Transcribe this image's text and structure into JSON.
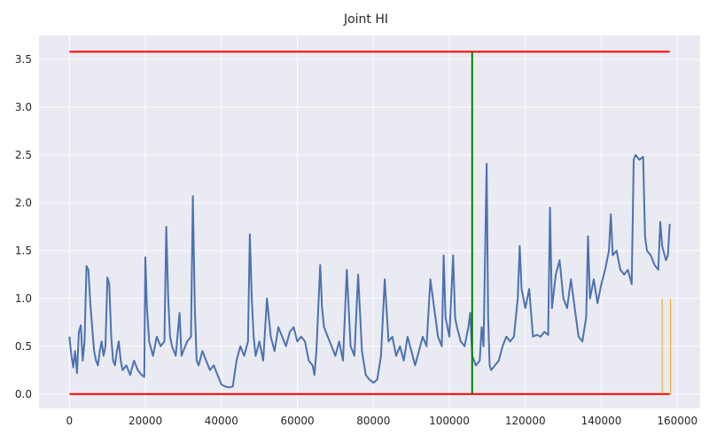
{
  "chart_data": {
    "type": "line",
    "title": "Joint HI",
    "xlabel": "",
    "ylabel": "",
    "xlim": [
      -8000,
      166000
    ],
    "ylim": [
      -0.15,
      3.75
    ],
    "xticks": [
      0,
      20000,
      40000,
      60000,
      80000,
      100000,
      120000,
      140000,
      160000
    ],
    "yticks": [
      0.0,
      0.5,
      1.0,
      1.5,
      2.0,
      2.5,
      3.0,
      3.5
    ],
    "xtick_labels": [
      "0",
      "20000",
      "40000",
      "60000",
      "80000",
      "100000",
      "120000",
      "140000",
      "160000"
    ],
    "ytick_labels": [
      "0.0",
      "0.5",
      "1.0",
      "1.5",
      "2.0",
      "2.5",
      "3.0",
      "3.5"
    ],
    "grid": true,
    "colors": {
      "background": "#eaeaf2",
      "grid": "#ffffff",
      "series": "#4c72b0",
      "threshold": "#ff0000",
      "marker": "#008000",
      "window": "#f5a623",
      "text": "#262626"
    },
    "series": [
      {
        "color": "#4c72b0",
        "points": [
          [
            0,
            0.6
          ],
          [
            500,
            0.42
          ],
          [
            1000,
            0.28
          ],
          [
            1500,
            0.45
          ],
          [
            2000,
            0.22
          ],
          [
            2500,
            0.65
          ],
          [
            3000,
            0.72
          ],
          [
            3500,
            0.35
          ],
          [
            4000,
            0.55
          ],
          [
            4500,
            1.34
          ],
          [
            5000,
            1.3
          ],
          [
            5500,
            0.95
          ],
          [
            6000,
            0.7
          ],
          [
            6500,
            0.45
          ],
          [
            7000,
            0.35
          ],
          [
            7500,
            0.3
          ],
          [
            8000,
            0.45
          ],
          [
            8500,
            0.55
          ],
          [
            9000,
            0.4
          ],
          [
            9500,
            0.5
          ],
          [
            10000,
            1.22
          ],
          [
            10500,
            1.15
          ],
          [
            11000,
            0.6
          ],
          [
            11500,
            0.35
          ],
          [
            12000,
            0.3
          ],
          [
            12500,
            0.45
          ],
          [
            13000,
            0.55
          ],
          [
            13500,
            0.35
          ],
          [
            14000,
            0.25
          ],
          [
            15000,
            0.3
          ],
          [
            16000,
            0.2
          ],
          [
            17000,
            0.35
          ],
          [
            18000,
            0.25
          ],
          [
            19000,
            0.2
          ],
          [
            19700,
            0.18
          ],
          [
            20000,
            1.43
          ],
          [
            20400,
            0.9
          ],
          [
            21000,
            0.55
          ],
          [
            22000,
            0.4
          ],
          [
            23000,
            0.6
          ],
          [
            24000,
            0.5
          ],
          [
            25000,
            0.55
          ],
          [
            25500,
            1.75
          ],
          [
            26000,
            1.0
          ],
          [
            26500,
            0.6
          ],
          [
            27000,
            0.5
          ],
          [
            28000,
            0.4
          ],
          [
            29000,
            0.85
          ],
          [
            29500,
            0.4
          ],
          [
            30000,
            0.45
          ],
          [
            31000,
            0.55
          ],
          [
            32000,
            0.6
          ],
          [
            32500,
            2.07
          ],
          [
            33000,
            0.9
          ],
          [
            33500,
            0.35
          ],
          [
            34000,
            0.3
          ],
          [
            35000,
            0.45
          ],
          [
            36000,
            0.35
          ],
          [
            37000,
            0.25
          ],
          [
            38000,
            0.3
          ],
          [
            39000,
            0.2
          ],
          [
            40000,
            0.1
          ],
          [
            41000,
            0.08
          ],
          [
            42000,
            0.07
          ],
          [
            43000,
            0.08
          ],
          [
            44000,
            0.35
          ],
          [
            45000,
            0.5
          ],
          [
            46000,
            0.4
          ],
          [
            47000,
            0.55
          ],
          [
            47500,
            1.67
          ],
          [
            48000,
            1.0
          ],
          [
            48500,
            0.6
          ],
          [
            49000,
            0.4
          ],
          [
            50000,
            0.55
          ],
          [
            51000,
            0.35
          ],
          [
            52000,
            1.0
          ],
          [
            53000,
            0.6
          ],
          [
            54000,
            0.45
          ],
          [
            55000,
            0.7
          ],
          [
            56000,
            0.6
          ],
          [
            57000,
            0.5
          ],
          [
            58000,
            0.65
          ],
          [
            59000,
            0.7
          ],
          [
            60000,
            0.55
          ],
          [
            61000,
            0.6
          ],
          [
            62000,
            0.55
          ],
          [
            63000,
            0.35
          ],
          [
            64000,
            0.3
          ],
          [
            64500,
            0.2
          ],
          [
            65000,
            0.45
          ],
          [
            66000,
            1.35
          ],
          [
            66500,
            0.9
          ],
          [
            67000,
            0.7
          ],
          [
            68000,
            0.6
          ],
          [
            69000,
            0.5
          ],
          [
            70000,
            0.4
          ],
          [
            71000,
            0.55
          ],
          [
            72000,
            0.35
          ],
          [
            73000,
            1.3
          ],
          [
            74000,
            0.5
          ],
          [
            75000,
            0.4
          ],
          [
            76000,
            1.25
          ],
          [
            77000,
            0.45
          ],
          [
            78000,
            0.2
          ],
          [
            79000,
            0.15
          ],
          [
            80000,
            0.12
          ],
          [
            81000,
            0.15
          ],
          [
            82000,
            0.4
          ],
          [
            83000,
            1.2
          ],
          [
            84000,
            0.55
          ],
          [
            85000,
            0.6
          ],
          [
            86000,
            0.4
          ],
          [
            87000,
            0.5
          ],
          [
            88000,
            0.35
          ],
          [
            89000,
            0.6
          ],
          [
            90000,
            0.45
          ],
          [
            91000,
            0.3
          ],
          [
            92000,
            0.45
          ],
          [
            93000,
            0.6
          ],
          [
            94000,
            0.5
          ],
          [
            95000,
            1.2
          ],
          [
            96000,
            0.9
          ],
          [
            97000,
            0.6
          ],
          [
            98000,
            0.5
          ],
          [
            98500,
            1.45
          ],
          [
            99000,
            0.8
          ],
          [
            100000,
            0.6
          ],
          [
            101000,
            1.45
          ],
          [
            101500,
            0.8
          ],
          [
            102000,
            0.7
          ],
          [
            103000,
            0.55
          ],
          [
            104000,
            0.5
          ],
          [
            105000,
            0.7
          ],
          [
            105500,
            0.85
          ],
          [
            106000,
            0.4
          ],
          [
            107000,
            0.3
          ],
          [
            108000,
            0.35
          ],
          [
            108500,
            0.7
          ],
          [
            109000,
            0.5
          ],
          [
            109800,
            2.41
          ],
          [
            110200,
            0.8
          ],
          [
            110600,
            0.3
          ],
          [
            111000,
            0.25
          ],
          [
            112000,
            0.3
          ],
          [
            113000,
            0.35
          ],
          [
            114000,
            0.5
          ],
          [
            115000,
            0.6
          ],
          [
            116000,
            0.55
          ],
          [
            117000,
            0.6
          ],
          [
            118000,
            1.0
          ],
          [
            118500,
            1.55
          ],
          [
            119000,
            1.1
          ],
          [
            120000,
            0.9
          ],
          [
            121000,
            1.1
          ],
          [
            122000,
            0.6
          ],
          [
            123000,
            0.62
          ],
          [
            124000,
            0.6
          ],
          [
            125000,
            0.65
          ],
          [
            126000,
            0.62
          ],
          [
            126500,
            1.95
          ],
          [
            127000,
            0.9
          ],
          [
            128000,
            1.25
          ],
          [
            129000,
            1.4
          ],
          [
            130000,
            1.0
          ],
          [
            131000,
            0.9
          ],
          [
            132000,
            1.2
          ],
          [
            133000,
            0.9
          ],
          [
            134000,
            0.6
          ],
          [
            135000,
            0.55
          ],
          [
            136000,
            0.8
          ],
          [
            136500,
            1.65
          ],
          [
            137000,
            1.0
          ],
          [
            138000,
            1.2
          ],
          [
            139000,
            0.95
          ],
          [
            140000,
            1.15
          ],
          [
            141000,
            1.3
          ],
          [
            142000,
            1.5
          ],
          [
            142500,
            1.88
          ],
          [
            143000,
            1.45
          ],
          [
            144000,
            1.5
          ],
          [
            145000,
            1.3
          ],
          [
            146000,
            1.25
          ],
          [
            147000,
            1.3
          ],
          [
            148000,
            1.15
          ],
          [
            148500,
            2.45
          ],
          [
            149000,
            2.5
          ],
          [
            150000,
            2.45
          ],
          [
            151000,
            2.48
          ],
          [
            151500,
            1.65
          ],
          [
            152000,
            1.5
          ],
          [
            153000,
            1.45
          ],
          [
            154000,
            1.35
          ],
          [
            155000,
            1.3
          ],
          [
            155500,
            1.8
          ],
          [
            156000,
            1.55
          ],
          [
            157000,
            1.4
          ],
          [
            157500,
            1.45
          ],
          [
            158000,
            1.78
          ]
        ]
      }
    ],
    "hlines": [
      {
        "y": 3.58,
        "x_from": 0,
        "x_to": 158000,
        "color": "#ff0000"
      },
      {
        "y": 0.0,
        "x_from": 0,
        "x_to": 158000,
        "color": "#ff0000"
      }
    ],
    "vlines": [
      {
        "x": 106000,
        "y_from": 0.0,
        "y_to": 3.58,
        "color": "#008000"
      },
      {
        "x": 156000,
        "y_from": 0.0,
        "y_to": 1.0,
        "color": "#f5a623"
      },
      {
        "x": 158200,
        "y_from": 0.0,
        "y_to": 1.0,
        "color": "#f5a623"
      }
    ]
  }
}
